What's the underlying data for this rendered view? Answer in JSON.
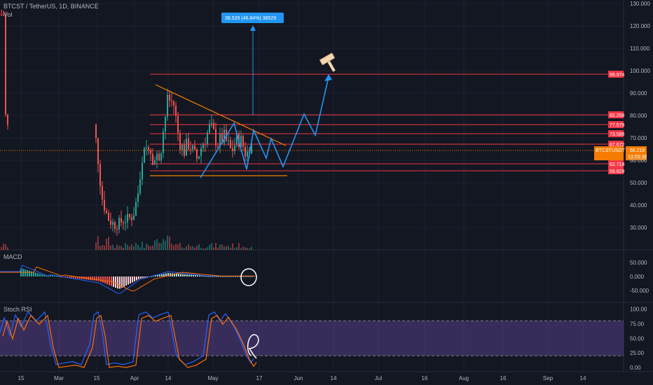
{
  "header": {
    "symbol": "BTCST / TetherUS, 1D, BINANCE",
    "volume_label": "Vol"
  },
  "indicators": {
    "macd_label": "MACD",
    "stoch_label": "Stoch RSI"
  },
  "projection_label": "38.529 (46.84%) 38529",
  "colors": {
    "background": "#131722",
    "up": "#26a69a",
    "down": "#ef5350",
    "projection": "#2196f3",
    "level": "#f23645",
    "trend": "#f57c00",
    "price_tag": "#f57c00",
    "stoch_band": "#7e57c2"
  },
  "chart_data": {
    "type": "candlestick",
    "price_axis": {
      "ticks": [
        "130.000",
        "120.000",
        "110.000",
        "100.000",
        "90.000",
        "80.000",
        "70.000",
        "60.000",
        "50.000",
        "40.000",
        "30.000"
      ],
      "range": [
        20,
        132
      ]
    },
    "time_axis": {
      "ticks": [
        "15",
        "Mar",
        "15",
        "Apr",
        "14",
        "May",
        "17",
        "Jun",
        "14",
        "Jul",
        "16",
        "Aug",
        "16",
        "Sep",
        "14"
      ]
    },
    "current_price": {
      "symbol": "BTCSTUSDT",
      "price": "66.218",
      "countdown": "13:55:36"
    },
    "levels": [
      "99.974",
      "82.258",
      "77.579",
      "73.589",
      "67.672",
      "62.718",
      "59.829"
    ],
    "macd_axis": [
      "50.000",
      "0.000",
      "-50.000"
    ],
    "stoch_axis": [
      "100.00",
      "75.00",
      "50.00",
      "25.00",
      "0.00"
    ],
    "stoch_band": [
      20,
      80
    ]
  }
}
